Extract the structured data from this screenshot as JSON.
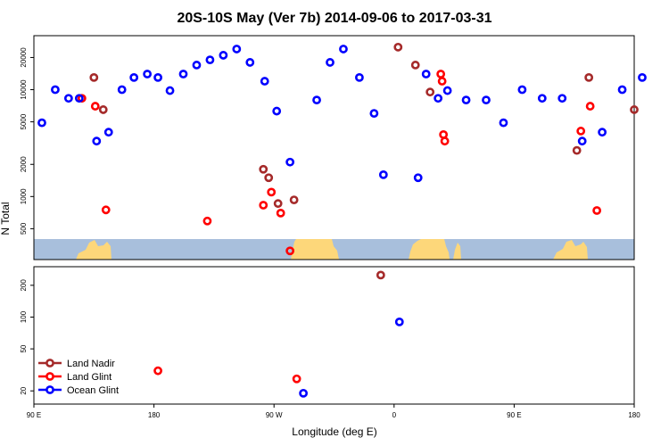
{
  "chart_data": {
    "type": "scatter",
    "title": "20S-10S May (Ver 7b)   2014-09-06 to 2017-03-31",
    "xlabel": "Longitude (deg E)",
    "ylabel": "N Total",
    "x_scale": "longitude, 90 E to 180 (wrapping through the date line)",
    "y_scale": "log",
    "x_ticks": [
      {
        "value": 90,
        "label": "90 E"
      },
      {
        "value": 180,
        "label": "180"
      },
      {
        "value": 270,
        "label": "90 W"
      },
      {
        "value": 360,
        "label": "0"
      },
      {
        "value": 450,
        "label": "90 E"
      },
      {
        "value": 540,
        "label": "180"
      }
    ],
    "xlim": [
      90,
      540
    ],
    "upper_panel": {
      "ylim": [
        400,
        32000
      ],
      "y_ticks": [
        500,
        1000,
        2000,
        5000,
        10000,
        20000
      ]
    },
    "lower_panel": {
      "ylim": [
        15,
        300
      ],
      "y_ticks": [
        20,
        50,
        100,
        200
      ]
    },
    "map_strip": {
      "ocean_color": "#a8bfdc",
      "land_color": "#fdd77a"
    },
    "legend": {
      "position": "bottom-left",
      "entries": [
        {
          "label": "Land Nadir",
          "color": "#a52a2a"
        },
        {
          "label": "Land Glint",
          "color": "#ff0000"
        },
        {
          "label": "Ocean Glint",
          "color": "#0000ff"
        }
      ]
    },
    "series": [
      {
        "name": "Land Nadir",
        "color": "#a52a2a",
        "x": [
          135,
          142,
          262,
          266,
          273,
          285,
          350,
          363,
          376,
          387,
          497,
          506,
          540
        ],
        "y": [
          13000,
          6500,
          1800,
          1500,
          860,
          930,
          250,
          25000,
          17000,
          9500,
          2700,
          13000,
          6500
        ]
      },
      {
        "name": "Land Glint",
        "color": "#ff0000",
        "x": [
          126,
          136,
          144,
          183,
          220,
          262,
          268,
          275,
          282,
          287,
          395,
          396,
          397,
          398,
          500,
          507,
          512
        ],
        "y": [
          8300,
          7000,
          750,
          31,
          590,
          830,
          1100,
          700,
          310,
          26,
          14000,
          12000,
          3800,
          3300,
          4100,
          7000,
          740
        ]
      },
      {
        "name": "Ocean Glint",
        "color": "#0000ff",
        "x": [
          96,
          106,
          116,
          124,
          137,
          146,
          156,
          165,
          175,
          183,
          192,
          202,
          212,
          222,
          232,
          242,
          252,
          263,
          272,
          282,
          292,
          302,
          312,
          322,
          334,
          345,
          352,
          364,
          378,
          384,
          393,
          400,
          414,
          429,
          442,
          456,
          471,
          486,
          501,
          516,
          531,
          546
        ],
        "y": [
          4900,
          10000,
          8300,
          8300,
          3300,
          4000,
          10000,
          13000,
          14000,
          13000,
          9800,
          14000,
          17000,
          19000,
          21000,
          24000,
          18000,
          12000,
          6300,
          2100,
          19,
          8000,
          18000,
          24000,
          13000,
          6000,
          1600,
          90,
          1500,
          14000,
          8300,
          9800,
          8000,
          8000,
          4900,
          10000,
          8300,
          8300,
          3300,
          4000,
          10000,
          13000
        ]
      }
    ]
  }
}
